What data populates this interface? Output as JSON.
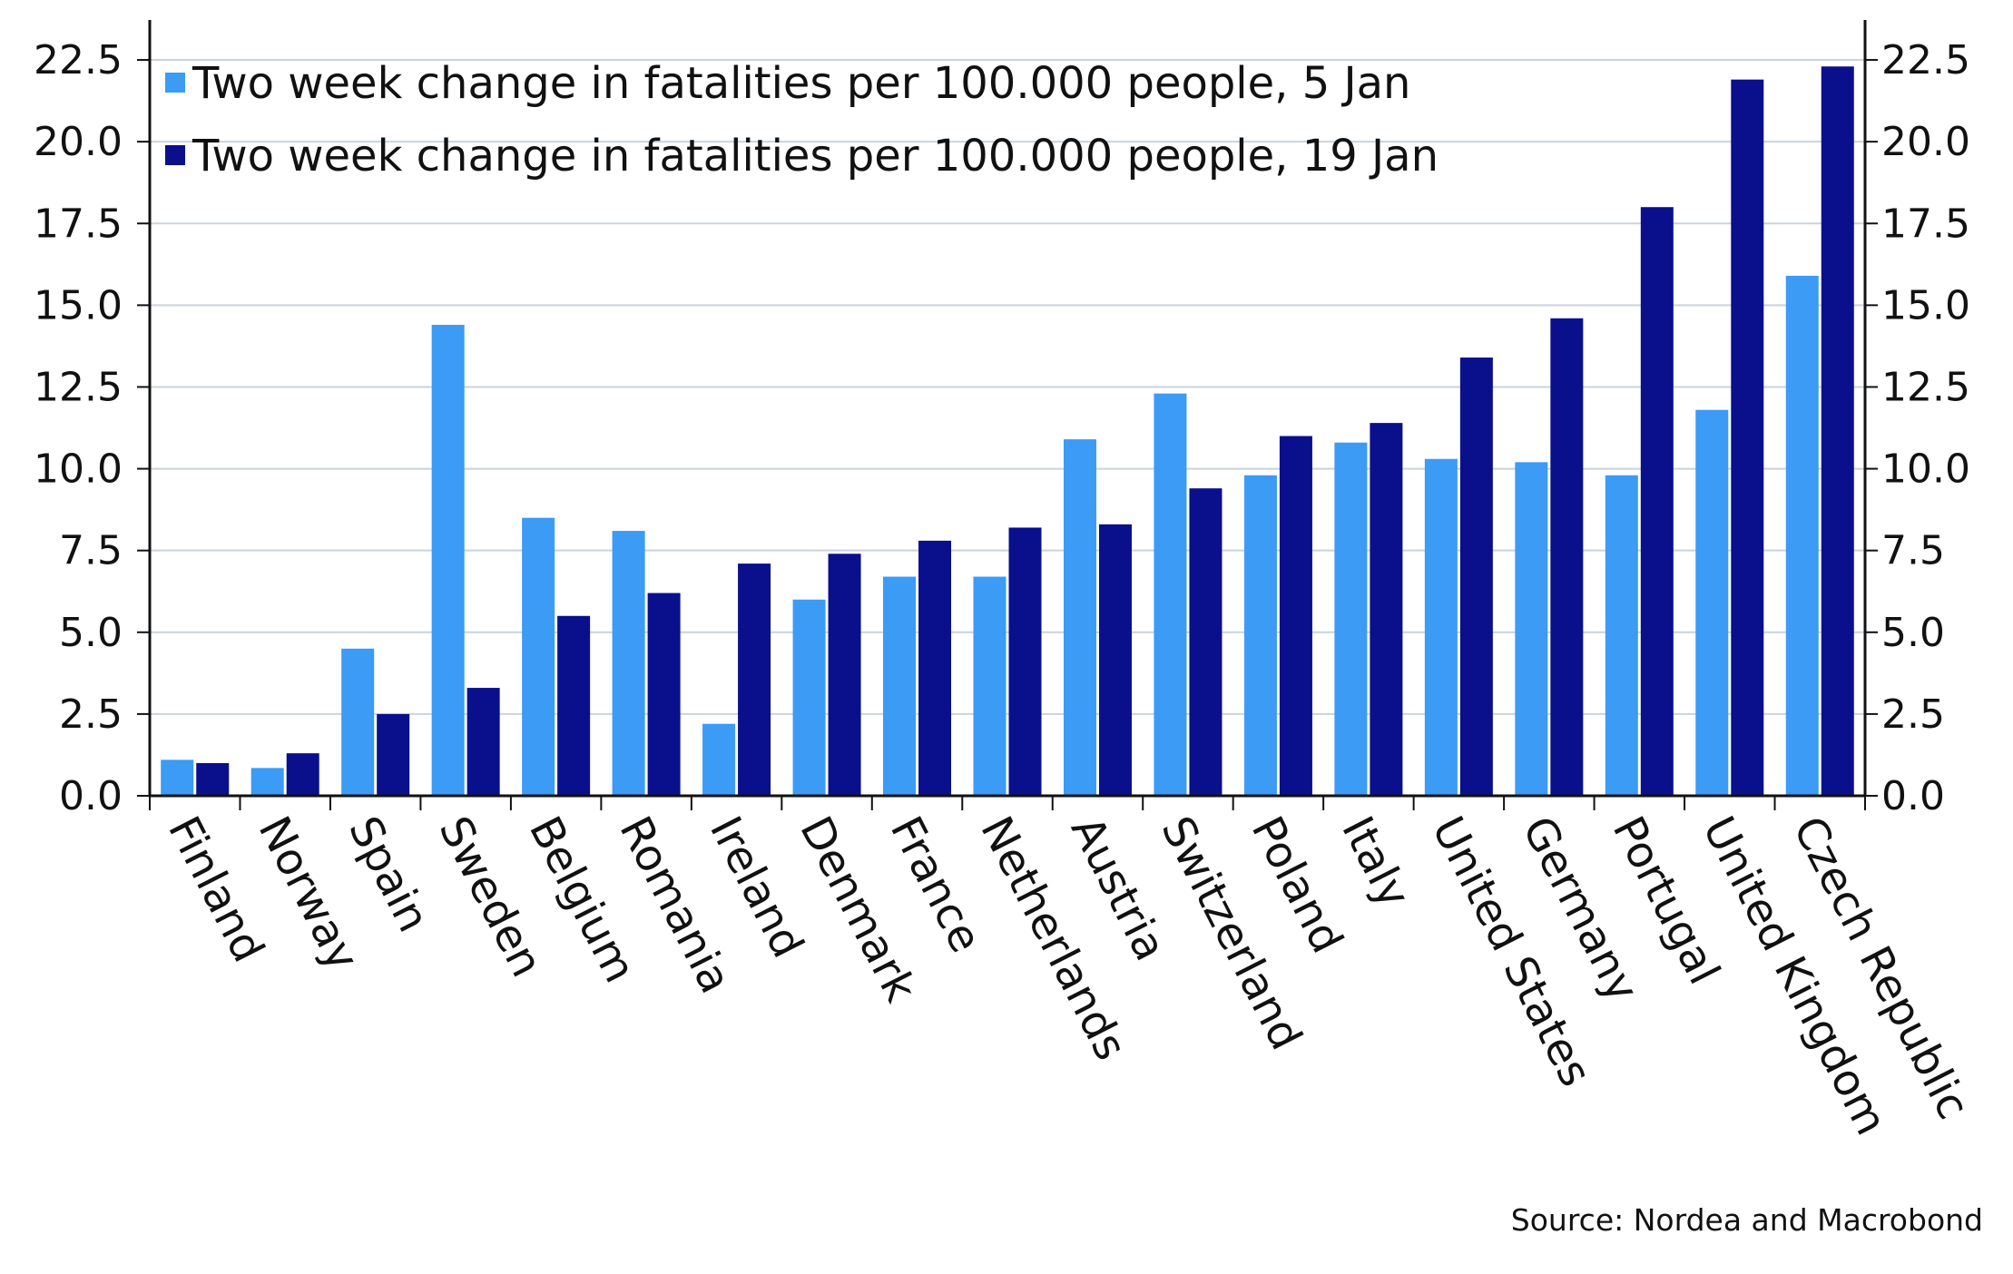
{
  "chart_data": {
    "type": "bar",
    "categories": [
      "Finland",
      "Norway",
      "Spain",
      "Sweden",
      "Belgium",
      "Romania",
      "Ireland",
      "Denmark",
      "France",
      "Netherlands",
      "Austria",
      "Switzerland",
      "Poland",
      "Italy",
      "United States",
      "Germany",
      "Portugal",
      "United Kingdom",
      "Czech Republic"
    ],
    "series": [
      {
        "name": "Two week change in fatalities per 100.000 people, 5 Jan",
        "color": "#3b9bf5",
        "values": [
          1.1,
          0.85,
          4.5,
          14.4,
          8.5,
          8.1,
          2.2,
          6.0,
          6.7,
          6.7,
          10.9,
          12.3,
          9.8,
          10.8,
          10.3,
          10.2,
          9.8,
          11.8,
          15.9
        ]
      },
      {
        "name": "Two week change in fatalities per 100.000 people, 19 Jan",
        "color": "#0a0f8c",
        "values": [
          1.0,
          1.3,
          2.5,
          3.3,
          5.5,
          6.2,
          7.1,
          7.4,
          7.8,
          8.2,
          8.3,
          9.4,
          11.0,
          11.4,
          13.4,
          14.6,
          18.0,
          21.9,
          22.3
        ]
      }
    ],
    "yticks": [
      "0.0",
      "2.5",
      "5.0",
      "7.5",
      "10.0",
      "12.5",
      "15.0",
      "17.5",
      "20.0",
      "22.5"
    ],
    "ylim": [
      0,
      23.5
    ],
    "grid": true,
    "legend_position": "top-left",
    "source": "Source: Nordea and Macrobond"
  }
}
